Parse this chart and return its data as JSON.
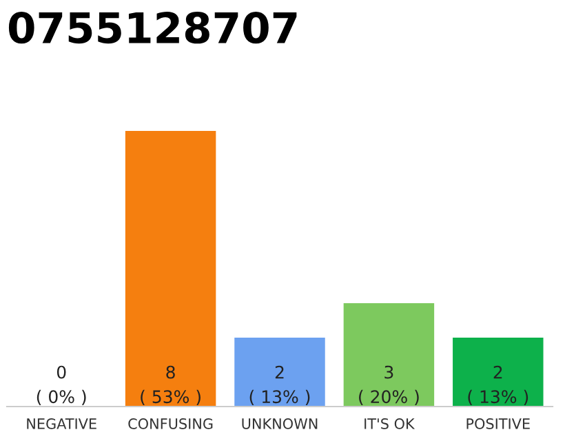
{
  "chart_data": {
    "type": "bar",
    "title": "0755128707",
    "categories": [
      "NEGATIVE",
      "CONFUSING",
      "UNKNOWN",
      "IT'S OK",
      "POSITIVE"
    ],
    "colors": [
      "#888888",
      "#f57f0f",
      "#6ca1f0",
      "#7dc95e",
      "#0db14b"
    ],
    "values": [
      0,
      8,
      2,
      3,
      2
    ],
    "value_labels": [
      "0\n( 0% )",
      "8\n( 53% )",
      "2\n( 13% )",
      "3\n( 20% )",
      "2\n( 13% )"
    ],
    "ylim": [
      0,
      8
    ],
    "grid": false,
    "tick_labels": "x"
  }
}
